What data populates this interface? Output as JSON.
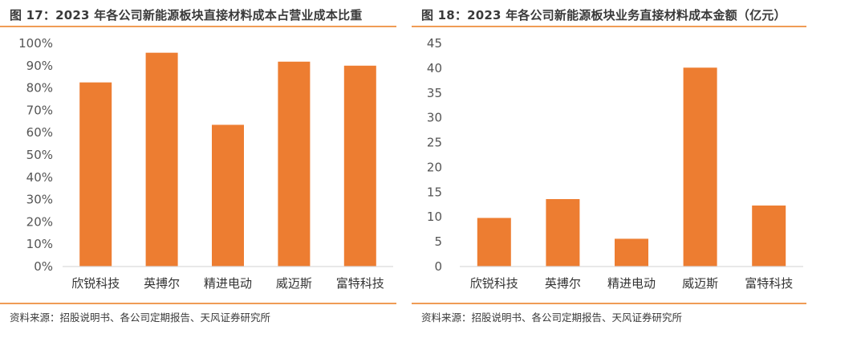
{
  "figures": [
    {
      "title": "图 17：2023 年各公司新能源板块直接材料成本占营业成本比重",
      "source": "资料来源：招股说明书、各公司定期报告、天风证券研究所"
    },
    {
      "title": "图 18：2023 年各公司新能源板块业务直接材料成本金额（亿元）",
      "source": "资料来源：招股说明书、各公司定期报告、天风证券研究所"
    }
  ],
  "colors": {
    "bar": "#ED7D31",
    "rule": "#F09C55",
    "axis": "#D9D9D9"
  },
  "chart_data": [
    {
      "type": "bar",
      "title": "图 17：2023 年各公司新能源板块直接材料成本占营业成本比重",
      "categories": [
        "欣锐科技",
        "英搏尔",
        "精进电动",
        "威迈斯",
        "富特科技"
      ],
      "values": [
        0.825,
        0.958,
        0.635,
        0.918,
        0.9
      ],
      "ylim": [
        0,
        1
      ],
      "yticks": [
        0,
        0.1,
        0.2,
        0.3,
        0.4,
        0.5,
        0.6,
        0.7,
        0.8,
        0.9,
        1.0
      ],
      "ytick_labels": [
        "0%",
        "10%",
        "20%",
        "30%",
        "40%",
        "50%",
        "60%",
        "70%",
        "80%",
        "90%",
        "100%"
      ],
      "grid": false,
      "legend": "none"
    },
    {
      "type": "bar",
      "title": "图 18：2023 年各公司新能源板块业务直接材料成本金额（亿元）",
      "categories": [
        "欣锐科技",
        "英搏尔",
        "精进电动",
        "威迈斯",
        "富特科技"
      ],
      "values": [
        9.8,
        13.6,
        5.6,
        40.1,
        12.3
      ],
      "ylim": [
        0,
        45
      ],
      "yticks": [
        0,
        5,
        10,
        15,
        20,
        25,
        30,
        35,
        40,
        45
      ],
      "ytick_labels": [
        "0",
        "5",
        "10",
        "15",
        "20",
        "25",
        "30",
        "35",
        "40",
        "45"
      ],
      "grid": false,
      "legend": "none"
    }
  ]
}
